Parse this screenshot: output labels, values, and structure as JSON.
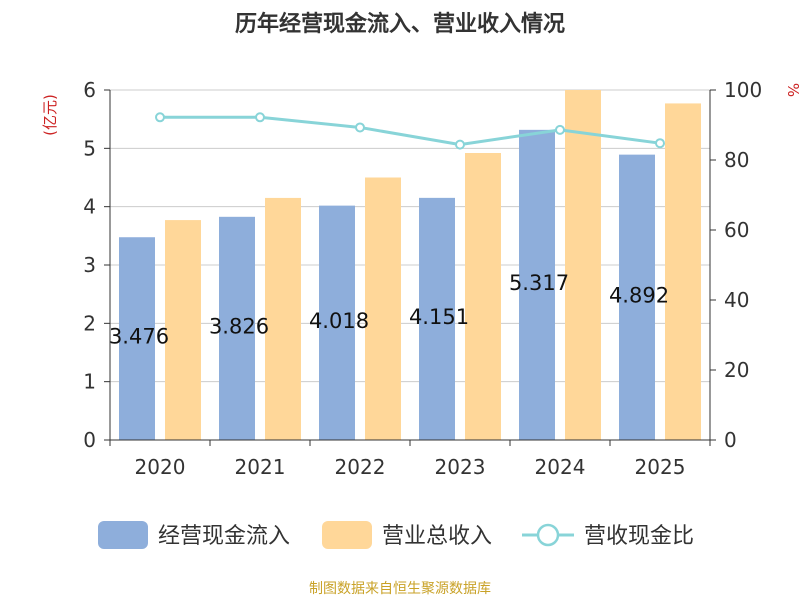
{
  "chart_data": {
    "type": "bar",
    "title": "历年经营现金流入、营业收入情况",
    "categories": [
      "2020",
      "2021",
      "2022",
      "2023",
      "2024",
      "2025"
    ],
    "y_left": {
      "unit": "(亿元)",
      "ylim": [
        0,
        6
      ],
      "ticks": [
        "0",
        "1",
        "2",
        "3",
        "4",
        "5",
        "6"
      ]
    },
    "y_right": {
      "unit": "%",
      "ylim": [
        0,
        100
      ],
      "ticks": [
        "0",
        "20",
        "40",
        "60",
        "80",
        "100"
      ]
    },
    "series": [
      {
        "name": "经营现金流入",
        "kind": "bar",
        "axis": "left",
        "color": "#8eaedb",
        "values": [
          3.476,
          3.826,
          4.018,
          4.151,
          5.317,
          4.892
        ],
        "labels": [
          "3.476",
          "3.826",
          "4.018",
          "4.151",
          "5.317",
          "4.892"
        ]
      },
      {
        "name": "营业总收入",
        "kind": "bar",
        "axis": "left",
        "color": "#ffd799",
        "values": [
          3.77,
          4.15,
          4.5,
          4.92,
          6.0,
          5.77
        ]
      },
      {
        "name": "营收现金比",
        "kind": "line",
        "axis": "right",
        "color": "#88d4d8",
        "values": [
          92.2,
          92.2,
          89.3,
          84.4,
          88.6,
          84.8
        ]
      }
    ],
    "grid": true,
    "legend_position": "bottom"
  },
  "source_note": "制图数据来自恒生聚源数据库"
}
